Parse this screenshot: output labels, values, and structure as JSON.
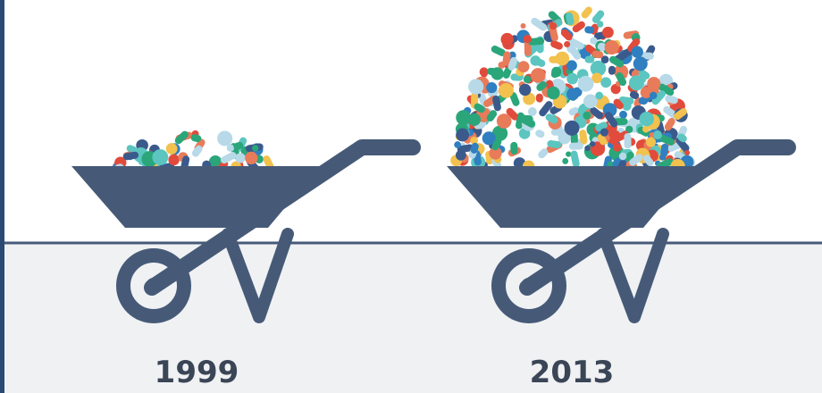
{
  "labels": [
    "1999",
    "2013"
  ]
}
